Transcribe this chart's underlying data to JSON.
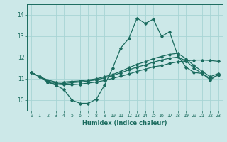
{
  "title": "",
  "xlabel": "Humidex (Indice chaleur)",
  "ylabel": "",
  "xlim": [
    -0.5,
    23.5
  ],
  "ylim": [
    9.5,
    14.5
  ],
  "yticks": [
    10,
    11,
    12,
    13,
    14
  ],
  "xticks": [
    0,
    1,
    2,
    3,
    4,
    5,
    6,
    7,
    8,
    9,
    10,
    11,
    12,
    13,
    14,
    15,
    16,
    17,
    18,
    19,
    20,
    21,
    22,
    23
  ],
  "xtick_labels": [
    "0",
    "1",
    "2",
    "3",
    "4",
    "5",
    "6",
    "7",
    "8",
    "9",
    "10",
    "11",
    "12",
    "13",
    "14",
    "15",
    "16",
    "17",
    "18",
    "19",
    "20",
    "21",
    "22",
    "23"
  ],
  "bg_color": "#cce8e8",
  "line_color": "#1a6b5e",
  "grid_color": "#b0d8d8",
  "series_main": [
    11.3,
    11.1,
    10.85,
    10.7,
    10.5,
    10.0,
    9.85,
    9.85,
    10.05,
    10.7,
    11.5,
    12.45,
    12.9,
    13.85,
    13.6,
    13.8,
    13.0,
    13.2,
    12.1,
    11.55,
    11.3,
    11.25,
    10.95,
    11.2
  ],
  "series_upper": [
    11.3,
    11.1,
    10.95,
    10.85,
    10.85,
    10.88,
    10.9,
    10.95,
    11.0,
    11.1,
    11.2,
    11.35,
    11.52,
    11.68,
    11.8,
    11.95,
    12.05,
    12.15,
    12.2,
    11.95,
    11.62,
    11.35,
    11.1,
    11.25
  ],
  "series_mid": [
    11.3,
    11.1,
    10.9,
    10.8,
    10.78,
    10.82,
    10.85,
    10.9,
    10.95,
    11.05,
    11.15,
    11.28,
    11.42,
    11.55,
    11.65,
    11.78,
    11.88,
    11.97,
    12.02,
    11.85,
    11.5,
    11.25,
    11.02,
    11.18
  ],
  "series_lower": [
    11.3,
    11.1,
    10.85,
    10.75,
    10.72,
    10.72,
    10.75,
    10.8,
    10.85,
    10.92,
    11.02,
    11.12,
    11.22,
    11.35,
    11.45,
    11.56,
    11.62,
    11.72,
    11.8,
    11.84,
    11.88,
    11.88,
    11.86,
    11.82
  ]
}
